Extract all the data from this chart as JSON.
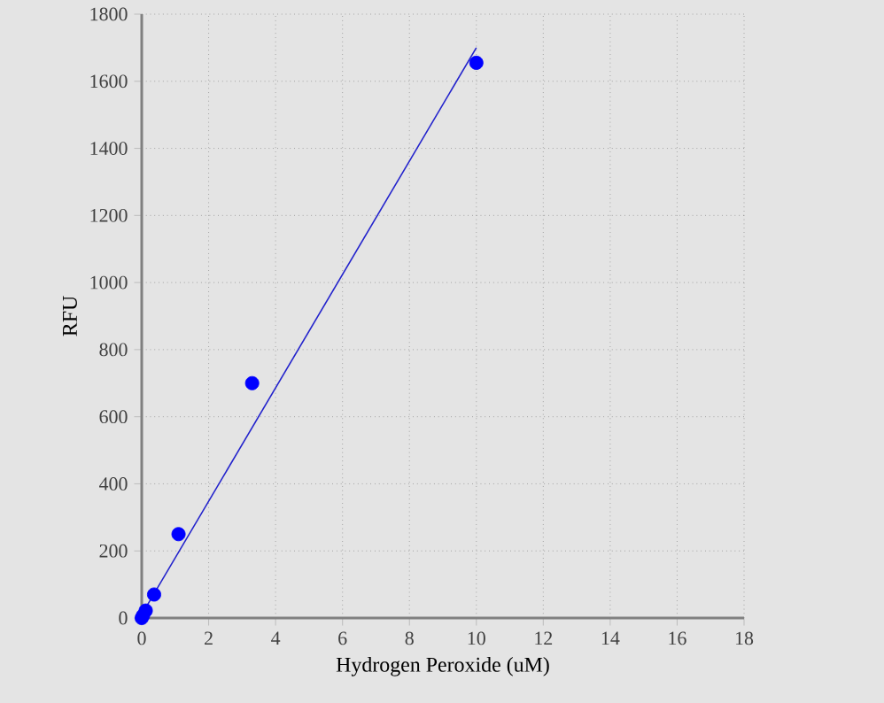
{
  "chart_data": {
    "type": "scatter",
    "xlabel": "Hydrogen Peroxide (uM)",
    "ylabel": "RFU",
    "xlim": [
      0,
      18
    ],
    "xticks": [
      0,
      2,
      4,
      6,
      8,
      10,
      12,
      14,
      16,
      18
    ],
    "ylim": [
      0,
      1800
    ],
    "yticks": [
      0,
      200,
      400,
      600,
      800,
      1000,
      1200,
      1400,
      1600,
      1800
    ],
    "grid": true,
    "series": [
      {
        "marker": "circle",
        "color": "#0000ff",
        "x": [
          0,
          0.04,
          0.12,
          0.37,
          1.1,
          3.3,
          10
        ],
        "values": [
          0,
          8,
          22,
          70,
          250,
          700,
          1655
        ]
      },
      {
        "type": "line",
        "marker": "none",
        "color": "#2222cc",
        "x": [
          0,
          10
        ],
        "values": [
          10,
          1700
        ]
      }
    ]
  }
}
